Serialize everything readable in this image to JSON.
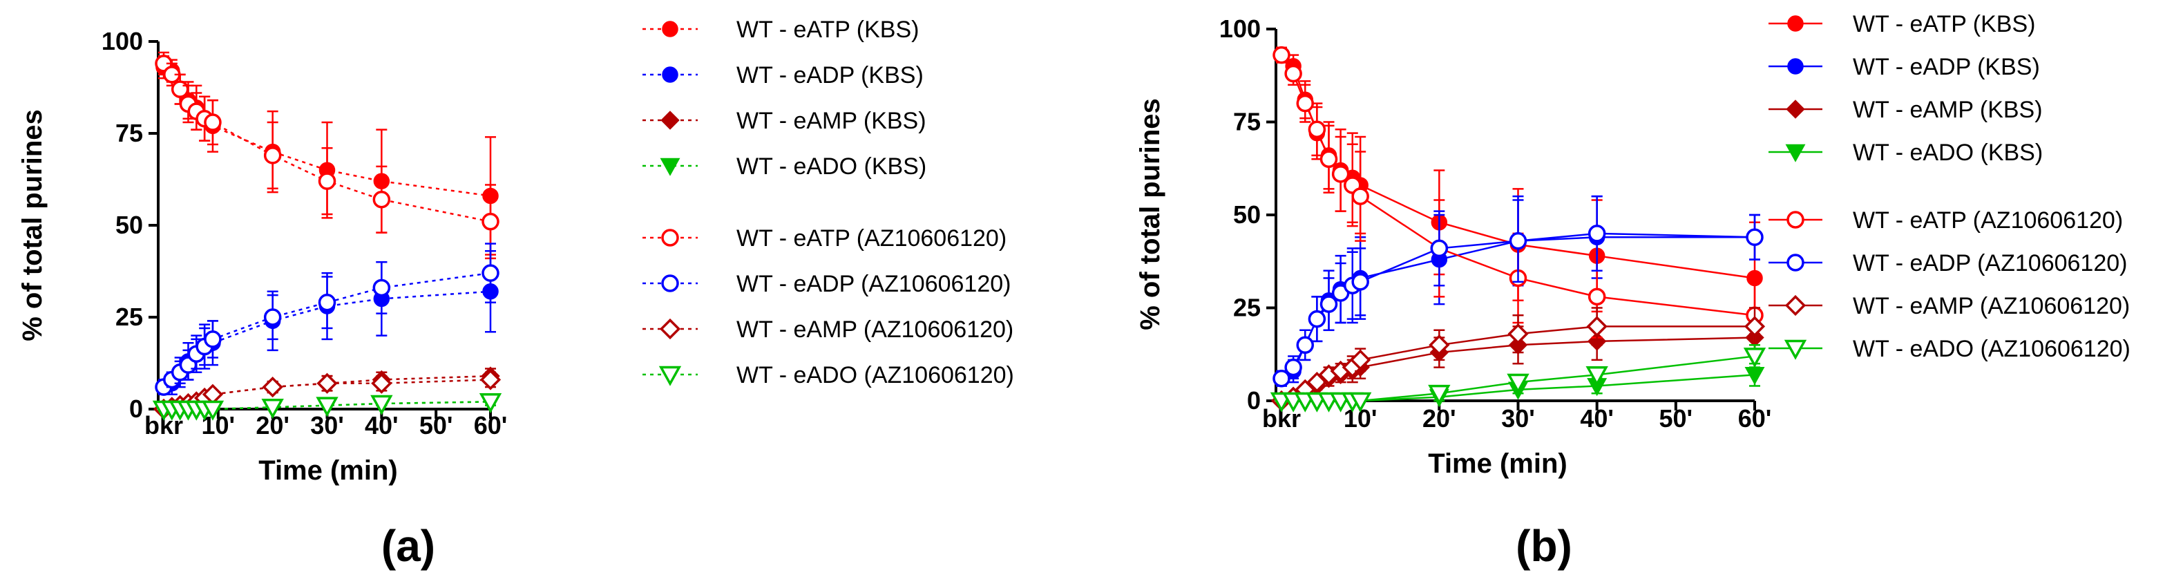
{
  "chart_data": [
    {
      "type": "line",
      "panel_label": "(a)",
      "line_style": "dotted",
      "xlabel": "Time (min)",
      "ylabel": "% of total purines",
      "x_ticks": [
        "bkr",
        "10'",
        "20'",
        "30'",
        "40'",
        "50'",
        "60'"
      ],
      "y_ticks": [
        "0",
        "25",
        "50",
        "75",
        "100"
      ],
      "xlim": [
        0,
        60
      ],
      "ylim": [
        0,
        100
      ],
      "x": [
        0,
        1.5,
        3,
        4.5,
        6,
        7.5,
        9,
        20,
        30,
        40,
        60
      ],
      "series": [
        {
          "name": "WT - eATP (KBS)",
          "color": "#ff0000",
          "marker": "circle",
          "filled": true,
          "values": [
            93,
            92,
            87,
            84,
            82,
            79,
            77,
            70,
            65,
            62,
            58
          ],
          "errors": [
            3,
            3,
            4,
            5,
            6,
            6,
            7,
            11,
            13,
            14,
            16
          ]
        },
        {
          "name": "WT - eADP (KBS)",
          "color": "#0000ff",
          "marker": "circle",
          "filled": true,
          "values": [
            6,
            7,
            10,
            13,
            15,
            17,
            18,
            24,
            28,
            30,
            32
          ],
          "errors": [
            2,
            3,
            4,
            5,
            5,
            6,
            6,
            8,
            9,
            10,
            11
          ]
        },
        {
          "name": "WT - eAMP (KBS)",
          "color": "#b30000",
          "marker": "diamond",
          "filled": true,
          "values": [
            0,
            0.5,
            1,
            1.5,
            2,
            3,
            4,
            6,
            7,
            8,
            9
          ],
          "errors": [
            0,
            0,
            0.5,
            0.5,
            1,
            1,
            1,
            1.5,
            2,
            2,
            2
          ]
        },
        {
          "name": "WT - eADO (KBS)",
          "color": "#00c000",
          "marker": "triangle-down",
          "filled": true,
          "values": [
            0,
            0,
            0,
            0,
            0,
            0,
            0,
            0.5,
            1,
            1.5,
            2
          ],
          "errors": [
            0,
            0,
            0,
            0,
            0,
            0,
            0,
            0,
            0,
            0.5,
            1
          ]
        },
        {
          "name": "WT - eATP (AZ10606120)",
          "color": "#ff0000",
          "marker": "circle",
          "filled": false,
          "values": [
            94,
            91,
            87,
            83,
            81,
            79,
            78,
            69,
            62,
            57,
            51
          ],
          "errors": [
            3,
            3,
            4,
            5,
            5,
            6,
            6,
            9,
            9,
            9,
            10
          ]
        },
        {
          "name": "WT - eADP (AZ10606120)",
          "color": "#0000ff",
          "marker": "circle",
          "filled": false,
          "values": [
            6,
            8,
            10,
            12,
            15,
            17,
            19,
            25,
            29,
            33,
            37
          ],
          "errors": [
            2,
            2,
            3,
            4,
            4,
            5,
            5,
            6,
            7,
            7,
            8
          ]
        },
        {
          "name": "WT - eAMP (AZ10606120)",
          "color": "#b30000",
          "marker": "diamond",
          "filled": false,
          "values": [
            0,
            0.5,
            1,
            1.5,
            2,
            3,
            4,
            6,
            7,
            7,
            8
          ],
          "errors": [
            0,
            0,
            0.5,
            0.5,
            1,
            1,
            1,
            1.5,
            2,
            2,
            2
          ]
        },
        {
          "name": "WT - eADO (AZ10606120)",
          "color": "#00c000",
          "marker": "triangle-down",
          "filled": false,
          "values": [
            0,
            0,
            0,
            0,
            0,
            0,
            0,
            0.5,
            1,
            1.5,
            2
          ],
          "errors": [
            0,
            0,
            0,
            0,
            0,
            0,
            0,
            0,
            0,
            0.5,
            1
          ]
        }
      ]
    },
    {
      "type": "line",
      "panel_label": "(b)",
      "line_style": "solid",
      "xlabel": "Time (min)",
      "ylabel": "% of total purines",
      "x_ticks": [
        "bkr",
        "10'",
        "20'",
        "30'",
        "40'",
        "50'",
        "60'"
      ],
      "y_ticks": [
        "0",
        "25",
        "50",
        "75",
        "100"
      ],
      "xlim": [
        0,
        60
      ],
      "ylim": [
        0,
        100
      ],
      "x": [
        0,
        1.5,
        3,
        4.5,
        6,
        7.5,
        9,
        10,
        20,
        30,
        40,
        60
      ],
      "series": [
        {
          "name": "WT - eATP (KBS)",
          "color": "#ff0000",
          "marker": "circle",
          "filled": true,
          "values": [
            93,
            90,
            81,
            72,
            66,
            62,
            60,
            58,
            48,
            42,
            39,
            33
          ],
          "errors": [
            2,
            3,
            5,
            7,
            9,
            11,
            12,
            13,
            14,
            15,
            15,
            15
          ]
        },
        {
          "name": "WT - eADP (KBS)",
          "color": "#0000ff",
          "marker": "circle",
          "filled": true,
          "values": [
            6,
            8,
            15,
            22,
            27,
            30,
            31,
            33,
            38,
            43,
            44,
            44
          ],
          "errors": [
            2,
            3,
            4,
            6,
            8,
            9,
            10,
            11,
            12,
            12,
            11,
            6
          ]
        },
        {
          "name": "WT - eAMP (KBS)",
          "color": "#b30000",
          "marker": "diamond",
          "filled": true,
          "values": [
            0,
            1,
            2,
            4,
            6,
            7,
            8,
            9,
            13,
            15,
            16,
            17
          ],
          "errors": [
            0,
            0.5,
            1,
            1,
            2,
            2,
            3,
            3,
            4,
            5,
            5,
            5
          ]
        },
        {
          "name": "WT - eADO (KBS)",
          "color": "#00c000",
          "marker": "triangle-down",
          "filled": true,
          "values": [
            0,
            0,
            0,
            0,
            0,
            0,
            0,
            0,
            1,
            3,
            4,
            7
          ],
          "errors": [
            0,
            0,
            0,
            0,
            0,
            0,
            0,
            0,
            1,
            1,
            2,
            3
          ]
        },
        {
          "name": "WT - eATP (AZ10606120)",
          "color": "#ff0000",
          "marker": "circle",
          "filled": false,
          "values": [
            93,
            88,
            80,
            73,
            65,
            61,
            58,
            55,
            41,
            33,
            28,
            23
          ],
          "errors": [
            2,
            3,
            5,
            7,
            9,
            10,
            11,
            12,
            13,
            12,
            11,
            9
          ]
        },
        {
          "name": "WT - eADP (AZ10606120)",
          "color": "#0000ff",
          "marker": "circle",
          "filled": false,
          "values": [
            6,
            9,
            15,
            22,
            26,
            29,
            31,
            32,
            41,
            43,
            45,
            44
          ],
          "errors": [
            2,
            3,
            4,
            6,
            7,
            8,
            9,
            9,
            10,
            11,
            10,
            6
          ]
        },
        {
          "name": "WT - eAMP (AZ10606120)",
          "color": "#b30000",
          "marker": "diamond",
          "filled": false,
          "values": [
            0,
            1,
            3,
            5,
            7,
            8,
            9,
            11,
            15,
            18,
            20,
            20
          ],
          "errors": [
            0,
            0.5,
            1,
            1,
            2,
            2,
            3,
            3,
            4,
            5,
            5,
            5
          ]
        },
        {
          "name": "WT - eADO (AZ10606120)",
          "color": "#00c000",
          "marker": "triangle-down",
          "filled": false,
          "values": [
            0,
            0,
            0,
            0,
            0,
            0,
            0,
            0,
            2,
            5,
            7,
            12
          ],
          "errors": [
            0,
            0,
            0,
            0,
            0,
            0,
            0,
            0,
            1,
            2,
            2,
            3
          ]
        }
      ]
    }
  ]
}
